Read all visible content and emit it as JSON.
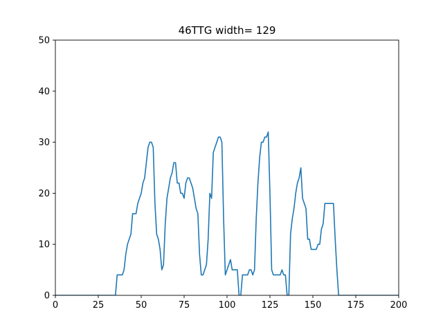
{
  "chart_data": {
    "type": "line",
    "title": "46TTG width= 129",
    "xlabel": "",
    "ylabel": "",
    "xlim": [
      0,
      200
    ],
    "ylim": [
      0,
      50
    ],
    "xticks": [
      0,
      25,
      50,
      75,
      100,
      125,
      150,
      175,
      200
    ],
    "yticks": [
      0,
      10,
      20,
      30,
      40,
      50
    ],
    "grid": false,
    "series": [
      {
        "color": "#1f77b4",
        "points": [
          [
            0,
            0
          ],
          [
            35,
            0
          ],
          [
            36,
            4
          ],
          [
            39,
            4
          ],
          [
            40,
            5
          ],
          [
            41,
            8
          ],
          [
            42,
            10
          ],
          [
            43,
            11
          ],
          [
            44,
            12
          ],
          [
            45,
            16
          ],
          [
            47,
            16
          ],
          [
            48,
            18
          ],
          [
            49,
            19
          ],
          [
            50,
            20
          ],
          [
            51,
            22
          ],
          [
            52,
            23
          ],
          [
            53,
            26
          ],
          [
            54,
            29
          ],
          [
            55,
            30
          ],
          [
            56,
            30
          ],
          [
            57,
            29
          ],
          [
            58,
            18
          ],
          [
            59,
            12
          ],
          [
            60,
            11
          ],
          [
            61,
            9
          ],
          [
            62,
            5
          ],
          [
            63,
            6
          ],
          [
            64,
            14
          ],
          [
            65,
            19
          ],
          [
            66,
            21
          ],
          [
            67,
            23
          ],
          [
            68,
            24
          ],
          [
            69,
            26
          ],
          [
            70,
            26
          ],
          [
            71,
            22
          ],
          [
            72,
            22
          ],
          [
            73,
            20
          ],
          [
            74,
            20
          ],
          [
            75,
            19
          ],
          [
            76,
            22
          ],
          [
            77,
            23
          ],
          [
            78,
            23
          ],
          [
            79,
            22
          ],
          [
            80,
            21
          ],
          [
            81,
            19
          ],
          [
            82,
            17
          ],
          [
            83,
            16
          ],
          [
            84,
            8
          ],
          [
            85,
            4
          ],
          [
            86,
            4
          ],
          [
            87,
            5
          ],
          [
            88,
            6
          ],
          [
            89,
            11
          ],
          [
            90,
            20
          ],
          [
            91,
            19
          ],
          [
            92,
            28
          ],
          [
            93,
            29
          ],
          [
            94,
            30
          ],
          [
            95,
            31
          ],
          [
            96,
            31
          ],
          [
            97,
            30
          ],
          [
            98,
            15
          ],
          [
            99,
            4
          ],
          [
            100,
            5
          ],
          [
            101,
            6
          ],
          [
            102,
            7
          ],
          [
            103,
            5
          ],
          [
            106,
            5
          ],
          [
            107,
            0
          ],
          [
            108,
            0
          ],
          [
            109,
            4
          ],
          [
            112,
            4
          ],
          [
            113,
            5
          ],
          [
            114,
            5
          ],
          [
            115,
            4
          ],
          [
            116,
            5
          ],
          [
            117,
            15
          ],
          [
            118,
            22
          ],
          [
            119,
            27
          ],
          [
            120,
            30
          ],
          [
            121,
            30
          ],
          [
            122,
            31
          ],
          [
            123,
            31
          ],
          [
            124,
            32
          ],
          [
            125,
            20
          ],
          [
            126,
            5
          ],
          [
            127,
            4
          ],
          [
            131,
            4
          ],
          [
            132,
            5
          ],
          [
            133,
            4
          ],
          [
            134,
            4
          ],
          [
            135,
            0
          ],
          [
            136,
            0
          ],
          [
            137,
            12
          ],
          [
            138,
            15
          ],
          [
            139,
            17
          ],
          [
            140,
            20
          ],
          [
            141,
            22
          ],
          [
            142,
            23
          ],
          [
            143,
            25
          ],
          [
            144,
            19
          ],
          [
            145,
            18
          ],
          [
            146,
            17
          ],
          [
            147,
            11
          ],
          [
            148,
            11
          ],
          [
            149,
            9
          ],
          [
            152,
            9
          ],
          [
            153,
            10
          ],
          [
            154,
            10
          ],
          [
            155,
            13
          ],
          [
            156,
            14
          ],
          [
            157,
            18
          ],
          [
            162,
            18
          ],
          [
            163,
            11
          ],
          [
            164,
            5
          ],
          [
            165,
            0
          ],
          [
            200,
            0
          ]
        ]
      }
    ]
  }
}
